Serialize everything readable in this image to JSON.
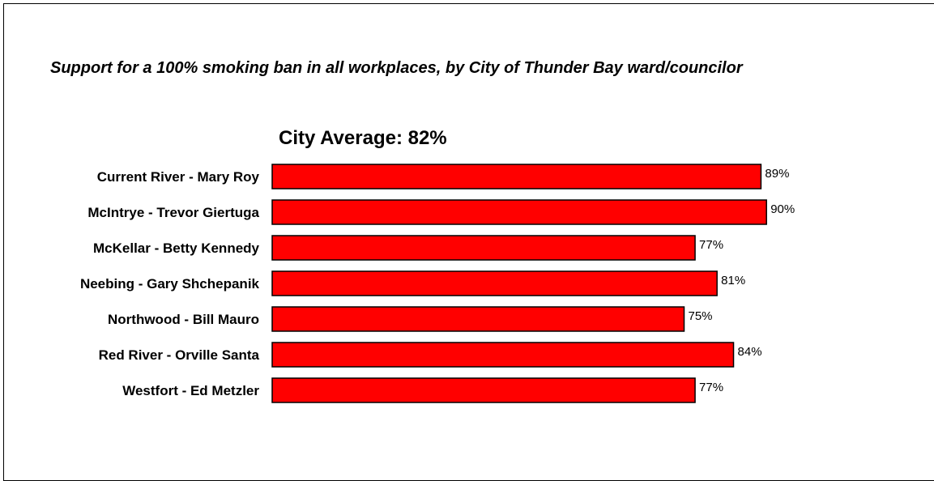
{
  "chart_data": {
    "type": "bar",
    "orientation": "horizontal",
    "title": "Support for a 100% smoking ban in all workplaces, by City of Thunder Bay ward/councilor",
    "subtitle": "City Average: 82%",
    "categories": [
      "Current River - Mary Roy",
      "McIntrye - Trevor Giertuga",
      "McKellar - Betty Kennedy",
      "Neebing - Gary Shchepanik",
      "Northwood - Bill Mauro",
      "Red River - Orville Santa",
      "Westfort - Ed Metzler"
    ],
    "values": [
      89,
      90,
      77,
      81,
      75,
      84,
      77
    ],
    "data_labels": [
      "89%",
      "90%",
      "77%",
      "81%",
      "75%",
      "84%",
      "77%"
    ],
    "xlim": [
      0,
      90
    ],
    "bar_color": "#ff0000",
    "bar_edge_color": "#000000",
    "grid": false,
    "legend": "none"
  }
}
